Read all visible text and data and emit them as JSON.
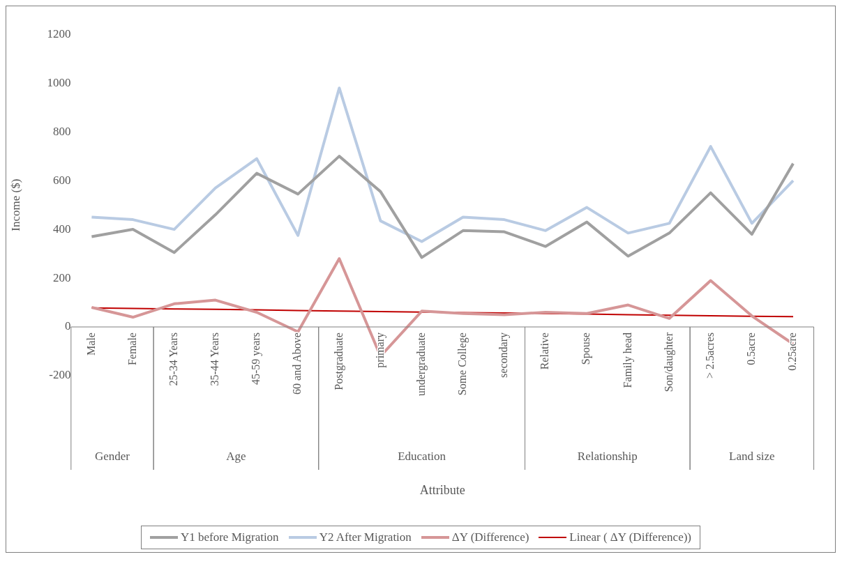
{
  "chart_data": {
    "type": "line",
    "ylabel": "Income ($)",
    "categories": [
      "Male",
      "Female",
      "25-34 Years",
      "35-44 Years",
      "45-59 years",
      "60 and Above",
      "Postgraduate",
      "primary",
      "undergraduate",
      "Some College",
      "secondary",
      "Relative",
      "Spouse",
      "Family head",
      "Son/daughter",
      "> 2.5acres",
      "0.5acre",
      "0.25acre"
    ],
    "series": [
      {
        "name": "Y1  before Migration",
        "color": "#a0a0a0",
        "values": [
          370,
          400,
          305,
          460,
          630,
          545,
          700,
          555,
          285,
          395,
          390,
          330,
          430,
          290,
          385,
          550,
          380,
          670
        ]
      },
      {
        "name": "Y2 After Migration",
        "color": "#b9cbe3",
        "values": [
          450,
          440,
          400,
          570,
          690,
          375,
          980,
          435,
          350,
          450,
          440,
          395,
          490,
          385,
          425,
          740,
          425,
          600
        ]
      },
      {
        "name": "ΔY (Difference)",
        "color": "#d69697",
        "values": [
          80,
          40,
          95,
          110,
          60,
          -20,
          280,
          -120,
          65,
          55,
          50,
          60,
          55,
          90,
          35,
          190,
          45,
          -70
        ]
      },
      {
        "name": "Linear ( ΔY (Difference))",
        "color": "#c00000",
        "values": [
          78,
          76,
          74,
          72,
          70,
          67,
          65,
          63,
          61,
          59,
          57,
          55,
          53,
          50,
          48,
          46,
          44,
          42
        ]
      }
    ],
    "annotations": [
      "Gender",
      "Age",
      "Education",
      "Relationship",
      "Land size",
      "Attribute"
    ],
    "ylim": [
      -200,
      1200
    ],
    "yticks": [
      -200,
      0,
      200,
      400,
      600,
      800,
      1000,
      1200
    ],
    "grid": false,
    "legend": "bottom",
    "marker": "none",
    "line_style": "solid"
  }
}
